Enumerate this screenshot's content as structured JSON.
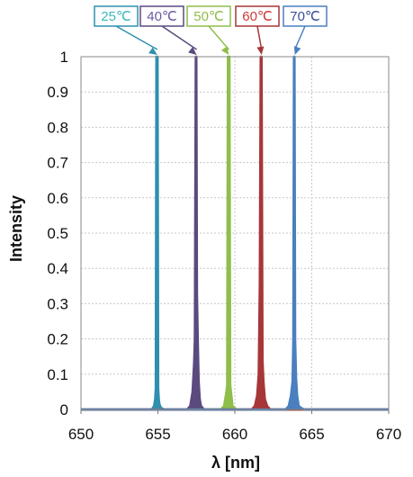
{
  "chart_data": {
    "type": "line",
    "xlabel": "λ [nm]",
    "ylabel": "Intensity",
    "xlim": [
      650,
      670
    ],
    "ylim": [
      0,
      1
    ],
    "x_ticks": [
      "650",
      "655",
      "660",
      "665",
      "670"
    ],
    "y_ticks": [
      "0",
      "0.1",
      "0.2",
      "0.3",
      "0.4",
      "0.5",
      "0.6",
      "0.7",
      "0.8",
      "0.9",
      "1"
    ],
    "grid": true,
    "series": [
      {
        "name": "25℃",
        "color": "#2f8fae",
        "label_color": "#3fb8b8",
        "x": [
          650,
          654.6,
          654.75,
          654.82,
          654.86,
          654.9,
          654.94,
          654.98,
          655.02,
          655.06,
          655.1,
          655.2,
          655.4,
          670
        ],
        "y": [
          0,
          0,
          0.01,
          0.03,
          0.06,
          1.0,
          1.0,
          1.0,
          0.06,
          0.03,
          0.015,
          0.005,
          0,
          0
        ]
      },
      {
        "name": "40℃",
        "color": "#5b4a7e",
        "label_color": "#6e5aa0",
        "x": [
          650,
          656.9,
          657.1,
          657.25,
          657.35,
          657.4,
          657.46,
          657.5,
          657.54,
          657.6,
          657.65,
          657.72,
          657.8,
          658.0,
          670
        ],
        "y": [
          0,
          0,
          0.01,
          0.05,
          0.13,
          0.2,
          1.0,
          1.0,
          0.33,
          0.18,
          0.08,
          0.03,
          0.01,
          0,
          0
        ]
      },
      {
        "name": "50℃",
        "color": "#8fbe4a",
        "label_color": "#8fbe4a",
        "x": [
          650,
          659.1,
          659.3,
          659.45,
          659.5,
          659.55,
          659.6,
          659.65,
          659.7,
          659.75,
          659.85,
          660.1,
          670
        ],
        "y": [
          0,
          0,
          0.01,
          0.05,
          0.07,
          1.0,
          1.0,
          1.0,
          0.07,
          0.05,
          0.01,
          0,
          0
        ]
      },
      {
        "name": "60℃",
        "color": "#a73638",
        "label_color": "#cc3a3a",
        "x": [
          650,
          661.1,
          661.3,
          661.45,
          661.55,
          661.62,
          661.68,
          661.74,
          661.8,
          661.86,
          661.95,
          662.1,
          662.3,
          670
        ],
        "y": [
          0,
          0,
          0.01,
          0.04,
          0.1,
          0.35,
          1.0,
          1.0,
          0.14,
          0.08,
          0.03,
          0.01,
          0,
          0
        ]
      },
      {
        "name": "70℃",
        "color": "#4a7fc0",
        "label_color": "#3a4f9a",
        "x": [
          650,
          663.3,
          663.5,
          663.65,
          663.75,
          663.8,
          663.84,
          663.88,
          663.92,
          663.98,
          664.05,
          664.15,
          664.3,
          664.5,
          670
        ],
        "y": [
          0,
          0,
          0.01,
          0.04,
          0.08,
          0.2,
          1.0,
          1.0,
          0.2,
          0.09,
          0.04,
          0.01,
          0.005,
          0,
          0
        ]
      }
    ]
  }
}
